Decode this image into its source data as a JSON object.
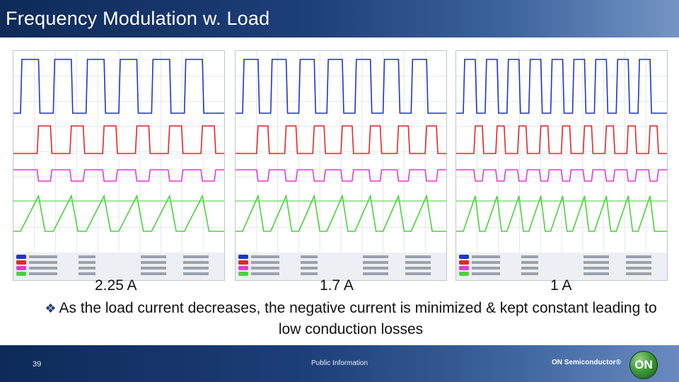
{
  "slide": {
    "title": "Frequency Modulation w. Load",
    "labels": [
      "2.25 A",
      "1.7 A",
      "1 A"
    ],
    "bullet_mark": "❖",
    "bullet": "As the load current decreases, the negative current is minimized & kept constant leading to low conduction losses",
    "page_number": "39",
    "footer_text": "Public Information",
    "brand": "ON Semiconductor®",
    "logo_text": "ON"
  },
  "colors": {
    "ch1": "#1f35c8",
    "ch2": "#e02828",
    "ch3": "#e43ad6",
    "ch4": "#4bd23c",
    "header": "#1d3f78"
  },
  "scopes": [
    {
      "name": "2.25 A",
      "pulses": 6
    },
    {
      "name": "1.7 A",
      "pulses": 7
    },
    {
      "name": "1 A",
      "pulses": 9
    }
  ]
}
